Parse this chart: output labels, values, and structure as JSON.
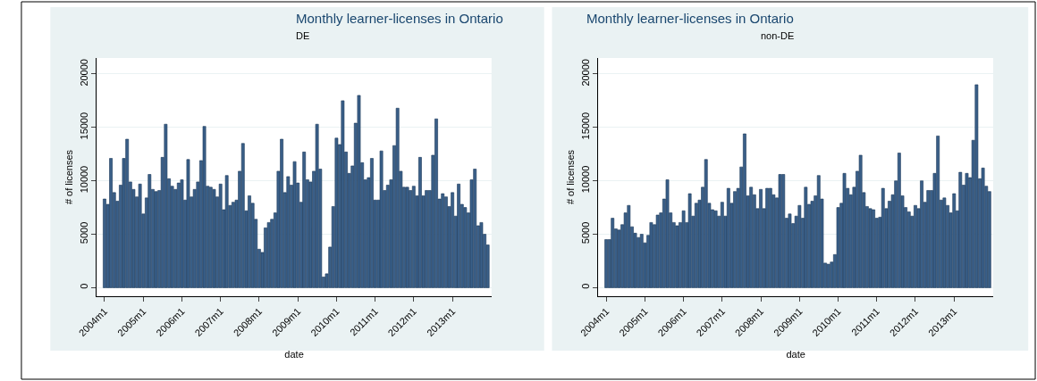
{
  "chart_data": [
    {
      "type": "bar",
      "title": "Monthly learner-licenses in Ontario",
      "subtitle": "DE",
      "xlabel": "date",
      "ylabel": "# of licenses",
      "color": "#3a5f88",
      "grid": "y",
      "x": [
        "2004-01",
        "2004-02",
        "2004-03",
        "2004-04",
        "2004-05",
        "2004-06",
        "2004-07",
        "2004-08",
        "2004-09",
        "2004-10",
        "2004-11",
        "2004-12",
        "2005-01",
        "2005-02",
        "2005-03",
        "2005-04",
        "2005-05",
        "2005-06",
        "2005-07",
        "2005-08",
        "2005-09",
        "2005-10",
        "2005-11",
        "2005-12",
        "2006-01",
        "2006-02",
        "2006-03",
        "2006-04",
        "2006-05",
        "2006-06",
        "2006-07",
        "2006-08",
        "2006-09",
        "2006-10",
        "2006-11",
        "2006-12",
        "2007-01",
        "2007-02",
        "2007-03",
        "2007-04",
        "2007-05",
        "2007-06",
        "2007-07",
        "2007-08",
        "2007-09",
        "2007-10",
        "2007-11",
        "2007-12",
        "2008-01",
        "2008-02",
        "2008-03",
        "2008-04",
        "2008-05",
        "2008-06",
        "2008-07",
        "2008-08",
        "2008-09",
        "2008-10",
        "2008-11",
        "2008-12",
        "2009-01",
        "2009-02",
        "2009-03",
        "2009-04",
        "2009-05",
        "2009-06",
        "2009-07",
        "2009-08",
        "2009-09",
        "2009-10",
        "2009-11",
        "2009-12",
        "2010-01",
        "2010-02",
        "2010-03",
        "2010-04",
        "2010-05",
        "2010-06",
        "2010-07",
        "2010-08",
        "2010-09",
        "2010-10",
        "2010-11",
        "2010-12",
        "2011-01",
        "2011-02",
        "2011-03",
        "2011-04",
        "2011-05",
        "2011-06",
        "2011-07",
        "2011-08",
        "2011-09",
        "2011-10",
        "2011-11",
        "2011-12",
        "2012-01",
        "2012-02",
        "2012-03",
        "2012-04",
        "2012-05",
        "2012-06",
        "2012-07",
        "2012-08",
        "2012-09",
        "2012-10",
        "2012-11",
        "2012-12",
        "2013-01",
        "2013-02",
        "2013-03",
        "2013-04",
        "2013-05",
        "2013-06",
        "2013-07",
        "2013-08",
        "2013-09",
        "2013-10",
        "2013-11",
        "2013-12"
      ],
      "values": [
        8300,
        7800,
        12100,
        8900,
        8100,
        9600,
        12100,
        13900,
        9900,
        9200,
        8500,
        9700,
        6900,
        8400,
        10600,
        9200,
        9000,
        9100,
        12200,
        15300,
        10200,
        9500,
        9200,
        9800,
        10100,
        8200,
        12000,
        8500,
        9200,
        9900,
        11900,
        15100,
        9500,
        9400,
        9200,
        8500,
        9700,
        7300,
        10500,
        7700,
        8000,
        8200,
        10900,
        13500,
        7200,
        8600,
        7900,
        6400,
        3600,
        3300,
        5600,
        6100,
        6400,
        7000,
        10900,
        13900,
        8900,
        10400,
        9600,
        11800,
        9800,
        8000,
        12700,
        10100,
        9900,
        10900,
        15300,
        11100,
        1000,
        1300,
        3800,
        7600,
        14000,
        13400,
        17500,
        12700,
        10700,
        11400,
        15400,
        18000,
        11700,
        10100,
        10300,
        12100,
        8200,
        8200,
        12800,
        9100,
        9600,
        10100,
        13300,
        16800,
        10900,
        9400,
        9400,
        9100,
        9500,
        8600,
        12200,
        8600,
        9100,
        9100,
        12400,
        15800,
        8300,
        8800,
        8500,
        7600,
        8900,
        6700,
        9700,
        7800,
        7500,
        7000,
        10100,
        11100,
        5800,
        6100,
        5000,
        4000
      ],
      "xlim": [
        "2003-10-20",
        "2014-01-05"
      ],
      "ylim": [
        -800,
        21500
      ],
      "xticks": [
        {
          "value": "2004-01",
          "label": "2004m1"
        },
        {
          "value": "2005-01",
          "label": "2005m1"
        },
        {
          "value": "2006-01",
          "label": "2006m1"
        },
        {
          "value": "2007-01",
          "label": "2007m1"
        },
        {
          "value": "2008-01",
          "label": "2008m1"
        },
        {
          "value": "2009-01",
          "label": "2009m1"
        },
        {
          "value": "2010-01",
          "label": "2010m1"
        },
        {
          "value": "2011-01",
          "label": "2011m1"
        },
        {
          "value": "2012-01",
          "label": "2012m1"
        },
        {
          "value": "2013-01",
          "label": "2013m1"
        }
      ],
      "yticks": [
        0,
        5000,
        10000,
        15000,
        20000
      ]
    },
    {
      "type": "bar",
      "title": "Monthly learner-licenses in Ontario",
      "subtitle": "non-DE",
      "xlabel": "date",
      "ylabel": "# of licenses",
      "color": "#3a5f88",
      "grid": "y",
      "x": [
        "2004-01",
        "2004-02",
        "2004-03",
        "2004-04",
        "2004-05",
        "2004-06",
        "2004-07",
        "2004-08",
        "2004-09",
        "2004-10",
        "2004-11",
        "2004-12",
        "2005-01",
        "2005-02",
        "2005-03",
        "2005-04",
        "2005-05",
        "2005-06",
        "2005-07",
        "2005-08",
        "2005-09",
        "2005-10",
        "2005-11",
        "2005-12",
        "2006-01",
        "2006-02",
        "2006-03",
        "2006-04",
        "2006-05",
        "2006-06",
        "2006-07",
        "2006-08",
        "2006-09",
        "2006-10",
        "2006-11",
        "2006-12",
        "2007-01",
        "2007-02",
        "2007-03",
        "2007-04",
        "2007-05",
        "2007-06",
        "2007-07",
        "2007-08",
        "2007-09",
        "2007-10",
        "2007-11",
        "2007-12",
        "2008-01",
        "2008-02",
        "2008-03",
        "2008-04",
        "2008-05",
        "2008-06",
        "2008-07",
        "2008-08",
        "2008-09",
        "2008-10",
        "2008-11",
        "2008-12",
        "2009-01",
        "2009-02",
        "2009-03",
        "2009-04",
        "2009-05",
        "2009-06",
        "2009-07",
        "2009-08",
        "2009-09",
        "2009-10",
        "2009-11",
        "2009-12",
        "2010-01",
        "2010-02",
        "2010-03",
        "2010-04",
        "2010-05",
        "2010-06",
        "2010-07",
        "2010-08",
        "2010-09",
        "2010-10",
        "2010-11",
        "2010-12",
        "2011-01",
        "2011-02",
        "2011-03",
        "2011-04",
        "2011-05",
        "2011-06",
        "2011-07",
        "2011-08",
        "2011-09",
        "2011-10",
        "2011-11",
        "2011-12",
        "2012-01",
        "2012-02",
        "2012-03",
        "2012-04",
        "2012-05",
        "2012-06",
        "2012-07",
        "2012-08",
        "2012-09",
        "2012-10",
        "2012-11",
        "2012-12",
        "2013-01",
        "2013-02",
        "2013-03",
        "2013-04",
        "2013-05",
        "2013-06",
        "2013-07",
        "2013-08",
        "2013-09",
        "2013-10",
        "2013-11",
        "2013-12"
      ],
      "values": [
        4500,
        4500,
        6500,
        5500,
        5400,
        5900,
        7000,
        7700,
        5700,
        5100,
        4700,
        5000,
        4200,
        4900,
        6100,
        5900,
        6800,
        7000,
        8300,
        10100,
        7000,
        6100,
        5800,
        6100,
        7200,
        6100,
        8800,
        6700,
        7900,
        8200,
        9400,
        12000,
        7900,
        7300,
        7200,
        6700,
        8000,
        6700,
        9300,
        7900,
        9000,
        9300,
        11300,
        14400,
        8600,
        9400,
        8700,
        7400,
        9200,
        7400,
        9300,
        9300,
        8700,
        8400,
        10600,
        10600,
        6500,
        6900,
        6000,
        6700,
        7700,
        6500,
        9400,
        7800,
        8100,
        8600,
        10500,
        8300,
        2300,
        2200,
        2400,
        3100,
        7500,
        7900,
        10700,
        9300,
        8700,
        9400,
        10900,
        12400,
        8900,
        7600,
        7400,
        7300,
        6500,
        6600,
        9300,
        7400,
        8100,
        8700,
        10000,
        12600,
        8600,
        7500,
        7100,
        6700,
        7700,
        7400,
        10000,
        8000,
        9100,
        9100,
        10700,
        14200,
        8200,
        8400,
        7700,
        7000,
        8800,
        7200,
        10800,
        9600,
        10700,
        10300,
        13800,
        19000,
        10200,
        11200,
        9500,
        9000
      ],
      "xlim": [
        "2003-10-20",
        "2014-01-05"
      ],
      "ylim": [
        -800,
        21500
      ],
      "xticks": [
        {
          "value": "2004-01",
          "label": "2004m1"
        },
        {
          "value": "2005-01",
          "label": "2005m1"
        },
        {
          "value": "2006-01",
          "label": "2006m1"
        },
        {
          "value": "2007-01",
          "label": "2007m1"
        },
        {
          "value": "2008-01",
          "label": "2008m1"
        },
        {
          "value": "2009-01",
          "label": "2009m1"
        },
        {
          "value": "2010-01",
          "label": "2010m1"
        },
        {
          "value": "2011-01",
          "label": "2011m1"
        },
        {
          "value": "2012-01",
          "label": "2012m1"
        },
        {
          "value": "2013-01",
          "label": "2013m1"
        }
      ],
      "yticks": [
        0,
        5000,
        10000,
        15000,
        20000
      ]
    }
  ]
}
